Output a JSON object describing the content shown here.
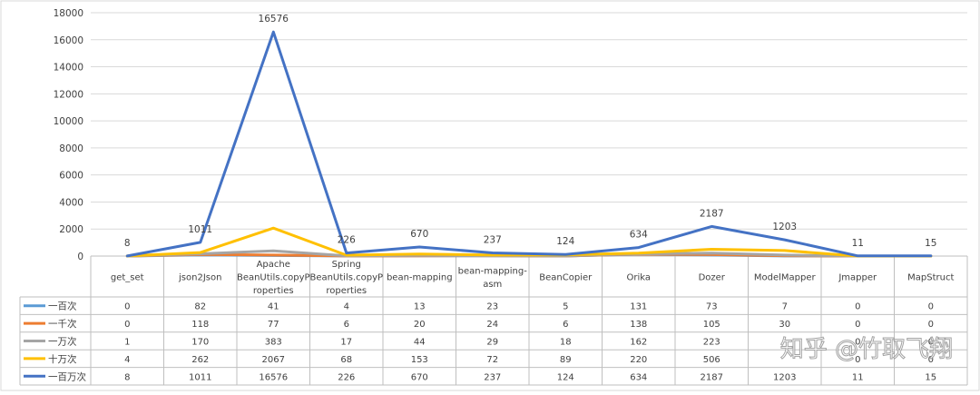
{
  "chart_data": {
    "type": "line",
    "ylim": [
      0,
      18000
    ],
    "yticks": [
      0,
      2000,
      4000,
      6000,
      8000,
      10000,
      12000,
      14000,
      16000,
      18000
    ],
    "categories": [
      [
        "get_set"
      ],
      [
        "json2Json"
      ],
      [
        "Apache",
        "BeanUtils.copyP",
        "roperties"
      ],
      [
        "Spring",
        "BeanUtils.copyP",
        "roperties"
      ],
      [
        "bean-mapping"
      ],
      [
        "bean-mapping-",
        "asm"
      ],
      [
        "BeanCopier"
      ],
      [
        "Orika"
      ],
      [
        "Dozer"
      ],
      [
        "ModelMapper"
      ],
      [
        "Jmapper"
      ],
      [
        "MapStruct"
      ]
    ],
    "series": [
      {
        "name": "一百次",
        "color": "#5b9bd5",
        "values": [
          0,
          82,
          41,
          4,
          13,
          23,
          5,
          131,
          73,
          7,
          0,
          0
        ]
      },
      {
        "name": "一千次",
        "color": "#ed7d31",
        "values": [
          0,
          118,
          77,
          6,
          20,
          24,
          6,
          138,
          105,
          30,
          0,
          0
        ]
      },
      {
        "name": "一万次",
        "color": "#a5a5a5",
        "values": [
          1,
          170,
          383,
          17,
          44,
          29,
          18,
          162,
          223,
          77,
          0,
          0
        ]
      },
      {
        "name": "十万次",
        "color": "#ffc000",
        "values": [
          4,
          262,
          2067,
          68,
          153,
          72,
          89,
          220,
          506,
          413,
          0,
          0
        ]
      },
      {
        "name": "一百万次",
        "color": "#4472c4",
        "values": [
          8,
          1011,
          16576,
          226,
          670,
          237,
          124,
          634,
          2187,
          1203,
          11,
          15
        ]
      }
    ],
    "table_cells": [
      [
        "0",
        "82",
        "41",
        "4",
        "13",
        "23",
        "5",
        "131",
        "73",
        "7",
        "0",
        "0"
      ],
      [
        "0",
        "118",
        "77",
        "6",
        "20",
        "24",
        "6",
        "138",
        "105",
        "30",
        "0",
        "0"
      ],
      [
        "1",
        "170",
        "383",
        "17",
        "44",
        "29",
        "18",
        "162",
        "223",
        "",
        "0",
        "0"
      ],
      [
        "4",
        "262",
        "2067",
        "68",
        "153",
        "72",
        "89",
        "220",
        "506",
        "",
        "0",
        "0"
      ],
      [
        "8",
        "1011",
        "16576",
        "226",
        "670",
        "237",
        "124",
        "634",
        "2187",
        "1203",
        "11",
        "15"
      ]
    ],
    "data_labels_series": 4,
    "grid": true,
    "legend": "data-table"
  },
  "watermark": "知乎 @竹取飞翔"
}
